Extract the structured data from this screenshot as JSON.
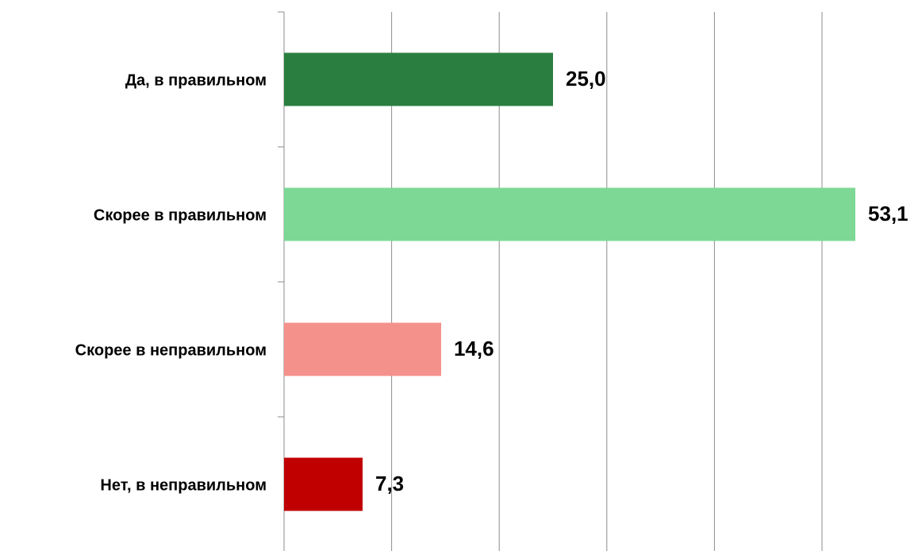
{
  "chart_data": {
    "type": "barh",
    "categories": [
      "Да, в правильном",
      "Скорее в правильном",
      "Скорее в неправильном",
      "Нет, в неправильном"
    ],
    "values": [
      25.0,
      53.1,
      14.6,
      7.3
    ],
    "value_labels": [
      "25,0",
      "53,1",
      "14,6",
      "7,3"
    ],
    "colors": [
      "#2a7e40",
      "#7dd895",
      "#f4918a",
      "#c00000"
    ],
    "xlim": [
      0,
      50
    ],
    "xticks": [
      0,
      10,
      20,
      30,
      40,
      50
    ],
    "grid": true
  }
}
